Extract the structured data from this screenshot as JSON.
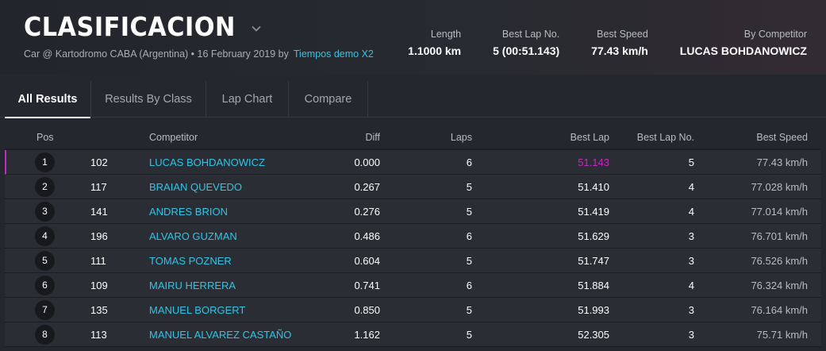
{
  "header": {
    "title": "CLASIFICACION",
    "subtitle": "Car @ Kartodromo CABA (Argentina) • 16 February 2019 by",
    "subtitle_link": "Tiempos demo X2",
    "stats": [
      {
        "label": "Length",
        "value": "1.1000 km"
      },
      {
        "label": "Best Lap No.",
        "value": "5 (00:51.143)"
      },
      {
        "label": "Best Speed",
        "value": "77.43 km/h"
      },
      {
        "label": "By Competitor",
        "value": "LUCAS BOHDANOWICZ"
      }
    ]
  },
  "tabs": [
    {
      "label": "All Results",
      "active": true
    },
    {
      "label": "Results By Class",
      "active": false
    },
    {
      "label": "Lap Chart",
      "active": false
    },
    {
      "label": "Compare",
      "active": false
    }
  ],
  "table": {
    "columns": {
      "pos": "Pos",
      "competitor": "Competitor",
      "diff": "Diff",
      "laps": "Laps",
      "best_lap": "Best Lap",
      "best_lap_no": "Best Lap No.",
      "best_speed": "Best Speed"
    },
    "rows": [
      {
        "pos": "1",
        "number": "102",
        "competitor": "LUCAS BOHDANOWICZ",
        "diff": "0.000",
        "laps": "6",
        "best_lap": "51.143",
        "best_lap_no": "5",
        "best_speed": "77.43 km/h"
      },
      {
        "pos": "2",
        "number": "117",
        "competitor": "BRAIAN QUEVEDO",
        "diff": "0.267",
        "laps": "5",
        "best_lap": "51.410",
        "best_lap_no": "4",
        "best_speed": "77.028 km/h"
      },
      {
        "pos": "3",
        "number": "141",
        "competitor": "ANDRES BRION",
        "diff": "0.276",
        "laps": "5",
        "best_lap": "51.419",
        "best_lap_no": "4",
        "best_speed": "77.014 km/h"
      },
      {
        "pos": "4",
        "number": "196",
        "competitor": "ALVARO GUZMAN",
        "diff": "0.486",
        "laps": "6",
        "best_lap": "51.629",
        "best_lap_no": "3",
        "best_speed": "76.701 km/h"
      },
      {
        "pos": "5",
        "number": "111",
        "competitor": "TOMAS POZNER",
        "diff": "0.604",
        "laps": "5",
        "best_lap": "51.747",
        "best_lap_no": "3",
        "best_speed": "76.526 km/h"
      },
      {
        "pos": "6",
        "number": "109",
        "competitor": "MAIRU HERRERA",
        "diff": "0.741",
        "laps": "6",
        "best_lap": "51.884",
        "best_lap_no": "4",
        "best_speed": "76.324 km/h"
      },
      {
        "pos": "7",
        "number": "135",
        "competitor": "MANUEL BORGERT",
        "diff": "0.850",
        "laps": "5",
        "best_lap": "51.993",
        "best_lap_no": "3",
        "best_speed": "76.164 km/h"
      },
      {
        "pos": "8",
        "number": "113",
        "competitor": "MANUEL ALVAREZ CASTAÑO",
        "diff": "1.162",
        "laps": "5",
        "best_lap": "52.305",
        "best_lap_no": "3",
        "best_speed": "75.71 km/h"
      }
    ]
  },
  "colors": {
    "accent": "#2ec6e6",
    "best_lap_highlight": "#c42bbf",
    "background": "#24272e"
  },
  "icons": {
    "title_dropdown": "chevron-down-icon"
  }
}
